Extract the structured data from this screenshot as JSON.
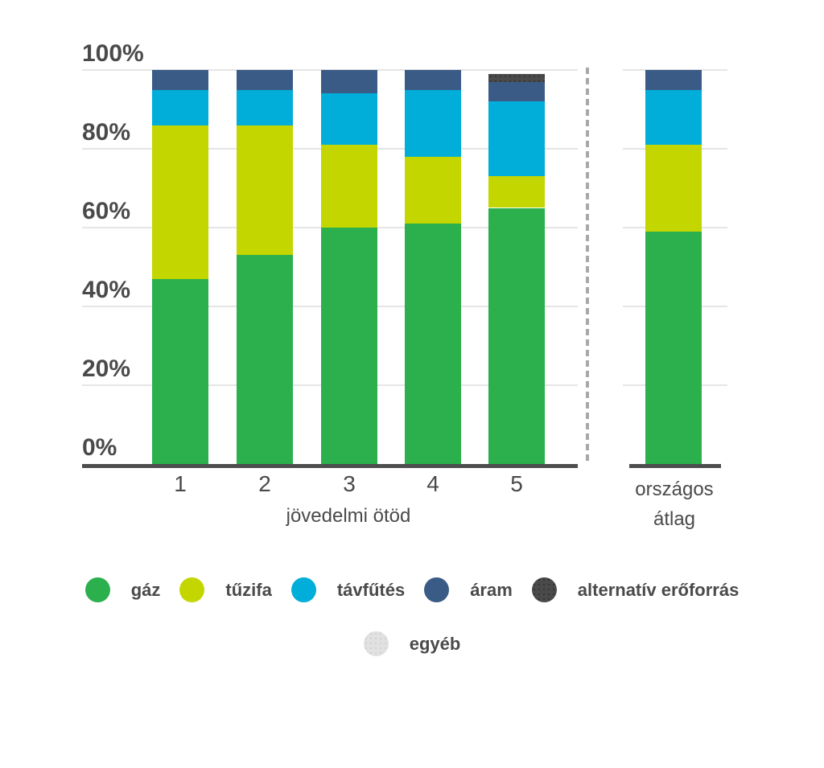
{
  "chart_data": {
    "type": "bar",
    "stacked": true,
    "percent": true,
    "xlabel": "jövedelmi ötöd",
    "ylabel": "",
    "ylim": [
      0,
      100
    ],
    "grid": true,
    "legend_position": "bottom",
    "yticks": [
      {
        "value": 0,
        "label": "0%"
      },
      {
        "value": 20,
        "label": "20%"
      },
      {
        "value": 40,
        "label": "40%"
      },
      {
        "value": 60,
        "label": "60%"
      },
      {
        "value": 80,
        "label": "80%"
      },
      {
        "value": 100,
        "label": "100%"
      }
    ],
    "categories": [
      "1",
      "2",
      "3",
      "4",
      "5"
    ],
    "average_category": {
      "label_line1": "országos",
      "label_line2": "átlag"
    },
    "series": [
      {
        "name": "gáz",
        "color": "#2bb04d",
        "values": [
          47,
          53,
          60,
          61,
          65
        ],
        "average": 59,
        "textured": false
      },
      {
        "name": "tűzifa",
        "color": "#c3d600",
        "values": [
          39,
          33,
          21,
          17,
          8
        ],
        "average": 22,
        "textured": false
      },
      {
        "name": "távfűtés",
        "color": "#00aed9",
        "values": [
          9,
          9,
          13,
          17,
          19
        ],
        "average": 14,
        "textured": false
      },
      {
        "name": "áram",
        "color": "#3b5b87",
        "values": [
          5,
          5,
          6,
          5,
          5
        ],
        "average": 5,
        "textured": false
      },
      {
        "name": "alternatív erőforrás",
        "color": "#4a4a4a",
        "values": [
          0,
          0,
          0,
          0,
          2
        ],
        "average": 0,
        "textured": true
      },
      {
        "name": "egyéb",
        "color": "#e1e1e1",
        "values": [
          0,
          0,
          0,
          0,
          0
        ],
        "average": 0,
        "textured": true
      }
    ],
    "legend_rows": [
      [
        0,
        1,
        2,
        3,
        4
      ],
      [
        5
      ]
    ]
  },
  "colors": {
    "text": "#4a4a4a",
    "axis": "#4d4d4d",
    "gridline": "#e5e5e5",
    "separator": "#a8a8a8",
    "background": "#ffffff"
  }
}
